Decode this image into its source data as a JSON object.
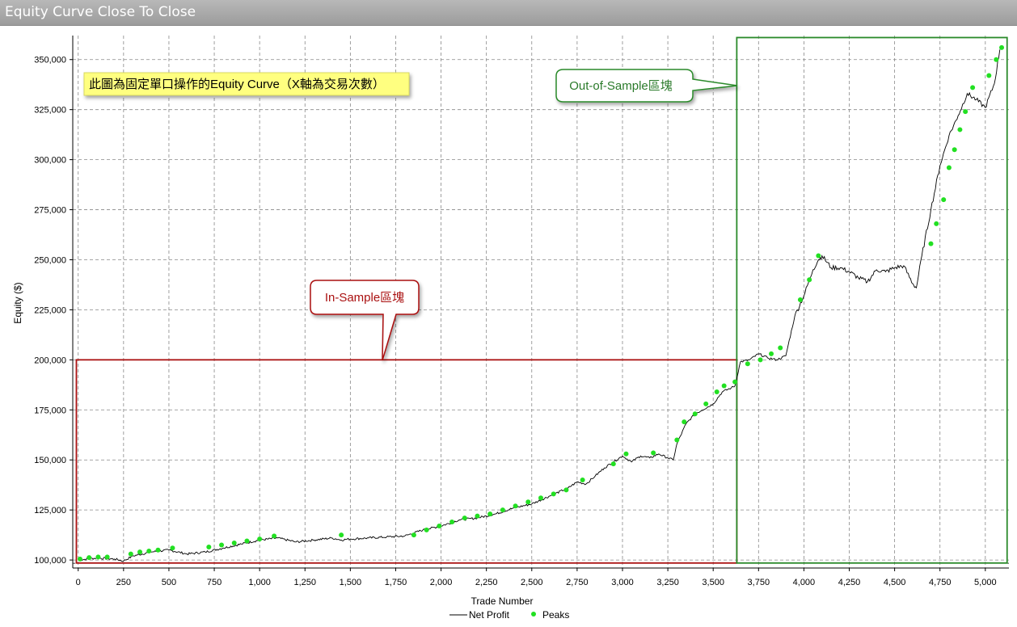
{
  "window": {
    "title": "Equity Curve Close To Close"
  },
  "colors": {
    "peaks": "#22e022",
    "line": "#000000",
    "in_sample": "#aa1111",
    "out_sample": "#2a8a2a",
    "note_bg": "#ffff80"
  },
  "annotations": {
    "note": "此圖為固定單口操作的Equity Curve（X軸為交易次數）",
    "in_sample_label": "In-Sample區塊",
    "out_sample_label": "Out-of-Sample區塊"
  },
  "chart_data": {
    "type": "line",
    "title": "Equity Curve Close To Close",
    "xlabel": "Trade Number",
    "ylabel": "Equity ($)",
    "xlim": [
      -30,
      5130
    ],
    "ylim": [
      96000,
      362000
    ],
    "x_ticks": [
      0,
      250,
      500,
      750,
      1000,
      1250,
      1500,
      1750,
      2000,
      2250,
      2500,
      2750,
      3000,
      3250,
      3500,
      3750,
      4000,
      4250,
      4500,
      4750,
      5000
    ],
    "x_tick_labels": [
      "0",
      "250",
      "500",
      "750",
      "1,000",
      "1,250",
      "1,500",
      "1,750",
      "2,000",
      "2,250",
      "2,500",
      "2,750",
      "3,000",
      "3,250",
      "3,500",
      "3,750",
      "4,000",
      "4,250",
      "4,500",
      "4,750",
      "5,000"
    ],
    "y_ticks": [
      100000,
      125000,
      150000,
      175000,
      200000,
      225000,
      250000,
      275000,
      300000,
      325000,
      350000
    ],
    "y_tick_labels": [
      "100,000",
      "125,000",
      "150,000",
      "175,000",
      "200,000",
      "225,000",
      "250,000",
      "275,000",
      "300,000",
      "325,000",
      "350,000"
    ],
    "baseline": 100000,
    "grid": true,
    "legend_placement": "bottom-center",
    "regions": [
      {
        "label": "In-Sample區塊",
        "x": [
          -10,
          3630
        ],
        "y": [
          98500,
          200000
        ]
      },
      {
        "label": "Out-of-Sample區塊",
        "x": [
          3630,
          5120
        ],
        "y": [
          98500,
          361000
        ]
      }
    ],
    "series": [
      {
        "name": "Net Profit",
        "x": [
          0,
          100,
          200,
          250,
          300,
          400,
          500,
          600,
          700,
          800,
          900,
          1000,
          1100,
          1200,
          1300,
          1400,
          1450,
          1500,
          1600,
          1700,
          1800,
          1900,
          2000,
          2100,
          2200,
          2300,
          2400,
          2500,
          2600,
          2700,
          2750,
          2800,
          2850,
          2900,
          3000,
          3050,
          3100,
          3150,
          3200,
          3250,
          3280,
          3300,
          3350,
          3400,
          3500,
          3550,
          3600,
          3620,
          3650,
          3700,
          3750,
          3800,
          3850,
          3900,
          3950,
          4000,
          4050,
          4080,
          4100,
          4150,
          4200,
          4250,
          4300,
          4350,
          4400,
          4450,
          4500,
          4550,
          4600,
          4620,
          4650,
          4700,
          4750,
          4800,
          4850,
          4900,
          4950,
          5000,
          5050,
          5080
        ],
        "values": [
          100000,
          101000,
          100500,
          99500,
          102000,
          104000,
          105000,
          103000,
          104000,
          106000,
          108000,
          110000,
          111000,
          109000,
          110000,
          111000,
          110000,
          110500,
          111000,
          111500,
          112000,
          115000,
          117000,
          120000,
          121000,
          123000,
          126000,
          128000,
          132000,
          136000,
          139000,
          138000,
          142000,
          146000,
          152000,
          149000,
          152000,
          151000,
          153000,
          151000,
          150000,
          158000,
          168000,
          173000,
          178000,
          184000,
          186000,
          187000,
          199000,
          200000,
          203000,
          201000,
          200000,
          202000,
          222000,
          232000,
          245000,
          250000,
          252000,
          246000,
          246000,
          244000,
          241000,
          239000,
          245000,
          244000,
          246000,
          247000,
          238000,
          236000,
          252000,
          275000,
          297000,
          312000,
          322000,
          333000,
          330000,
          326000,
          338000,
          355000
        ]
      },
      {
        "name": "Peaks",
        "x": [
          10,
          60,
          110,
          160,
          290,
          340,
          390,
          440,
          520,
          720,
          790,
          860,
          930,
          1000,
          1080,
          1450,
          1850,
          1920,
          1990,
          2060,
          2130,
          2200,
          2270,
          2340,
          2410,
          2480,
          2550,
          2620,
          2690,
          2780,
          2950,
          3020,
          3170,
          3300,
          3340,
          3400,
          3460,
          3520,
          3560,
          3620,
          3690,
          3760,
          3820,
          3870,
          3980,
          4030,
          4080,
          4700,
          4730,
          4770,
          4800,
          4830,
          4860,
          4890,
          4930,
          5020,
          5060,
          5090
        ],
        "values": [
          100500,
          101200,
          101500,
          101500,
          103000,
          104000,
          104500,
          105000,
          106000,
          106500,
          107500,
          108500,
          109500,
          110500,
          112000,
          112500,
          112500,
          115000,
          117000,
          119000,
          121000,
          122000,
          123000,
          125000,
          127000,
          129000,
          131000,
          133000,
          135000,
          140000,
          148000,
          153000,
          153500,
          160000,
          169000,
          173000,
          178000,
          184000,
          187000,
          189000,
          198000,
          200000,
          203000,
          206000,
          230000,
          240000,
          252000,
          258000,
          268000,
          280000,
          296000,
          305000,
          315000,
          324000,
          336000,
          342000,
          350000,
          356000
        ]
      }
    ]
  }
}
